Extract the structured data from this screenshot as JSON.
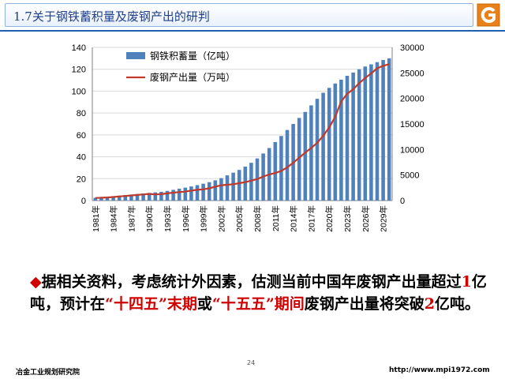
{
  "slide": {
    "title": "1.7关于钢铁蓄积量及废钢产出的研判",
    "page_number": "24",
    "footer_left": "冶金工业规划研究院",
    "footer_right": "http://www.mpi1972.com"
  },
  "note": {
    "bullet": "◆",
    "parts": [
      {
        "text": "据相关资料，考虑统计外因素，估测当前中国年废钢产出量超过",
        "red": false
      },
      {
        "text": "1",
        "red": true
      },
      {
        "text": "亿吨，预计在",
        "red": false
      },
      {
        "text": "“十四五”末期",
        "red": true
      },
      {
        "text": "或",
        "red": false
      },
      {
        "text": "“十五五”期间",
        "red": true
      },
      {
        "text": "废钢产出量将突破",
        "red": false
      },
      {
        "text": "2",
        "red": true
      },
      {
        "text": "亿吨。",
        "red": false
      }
    ]
  },
  "colors": {
    "bar": "#4f81bd",
    "line": "#c0392b",
    "highlight": "#d00000",
    "title_text": "#1f3f8c"
  },
  "chart_data": {
    "type": "bar",
    "title": "",
    "x": [
      1981,
      1982,
      1983,
      1984,
      1985,
      1986,
      1987,
      1988,
      1989,
      1990,
      1991,
      1992,
      1993,
      1994,
      1995,
      1996,
      1997,
      1998,
      1999,
      2000,
      2001,
      2002,
      2003,
      2004,
      2005,
      2006,
      2007,
      2008,
      2009,
      2010,
      2011,
      2012,
      2013,
      2014,
      2015,
      2016,
      2017,
      2018,
      2019,
      2020,
      2021,
      2022,
      2023,
      2024,
      2025,
      2026,
      2027,
      2028,
      2029,
      2030
    ],
    "x_tick_labels": [
      "1981年",
      "1984年",
      "1987年",
      "1990年",
      "1993年",
      "1996年",
      "1999年",
      "2002年",
      "2005年",
      "2008年",
      "2011年",
      "2014年",
      "2017年",
      "2020年",
      "2023年",
      "2026年",
      "2029年"
    ],
    "x_tick_years": [
      1981,
      1984,
      1987,
      1990,
      1993,
      1996,
      1999,
      2002,
      2005,
      2008,
      2011,
      2014,
      2017,
      2020,
      2023,
      2026,
      2029
    ],
    "y_left": {
      "ylim": [
        0,
        140
      ],
      "ticks": [
        0,
        20,
        40,
        60,
        80,
        100,
        120,
        140
      ]
    },
    "y_right": {
      "ylim": [
        0,
        30000
      ],
      "ticks": [
        0,
        5000,
        10000,
        15000,
        20000,
        25000,
        30000
      ]
    },
    "series": [
      {
        "name": "钢铁积蓄量（亿吨）",
        "kind": "bar",
        "axis": "left",
        "values": [
          2.5,
          3,
          3.5,
          4,
          4.5,
          5,
          5.5,
          6,
          6.5,
          7,
          7.5,
          8,
          8.8,
          9.8,
          10.8,
          11.8,
          12.9,
          14.1,
          15.4,
          16.8,
          18.5,
          20.5,
          23,
          25.5,
          28,
          31,
          34.5,
          38.5,
          43,
          48,
          53.5,
          59,
          64.5,
          70,
          75.5,
          81,
          87,
          93,
          98.5,
          103,
          107,
          110.5,
          114,
          117,
          120,
          122.5,
          124.5,
          126.5,
          128.5,
          130
        ]
      },
      {
        "name": "废钢产出量（万吨）",
        "kind": "line",
        "axis": "right",
        "values": [
          500,
          550,
          600,
          700,
          800,
          900,
          1000,
          1100,
          1200,
          1300,
          1200,
          1250,
          1400,
          1550,
          1650,
          1750,
          1950,
          2100,
          2200,
          2400,
          2700,
          3000,
          3100,
          3200,
          3400,
          3600,
          3900,
          4200,
          4700,
          5100,
          5400,
          5800,
          6500,
          7400,
          8400,
          9400,
          10300,
          11300,
          12700,
          14300,
          16400,
          19400,
          20900,
          21800,
          23000,
          24000,
          24900,
          25900,
          26400,
          26700
        ]
      }
    ]
  }
}
